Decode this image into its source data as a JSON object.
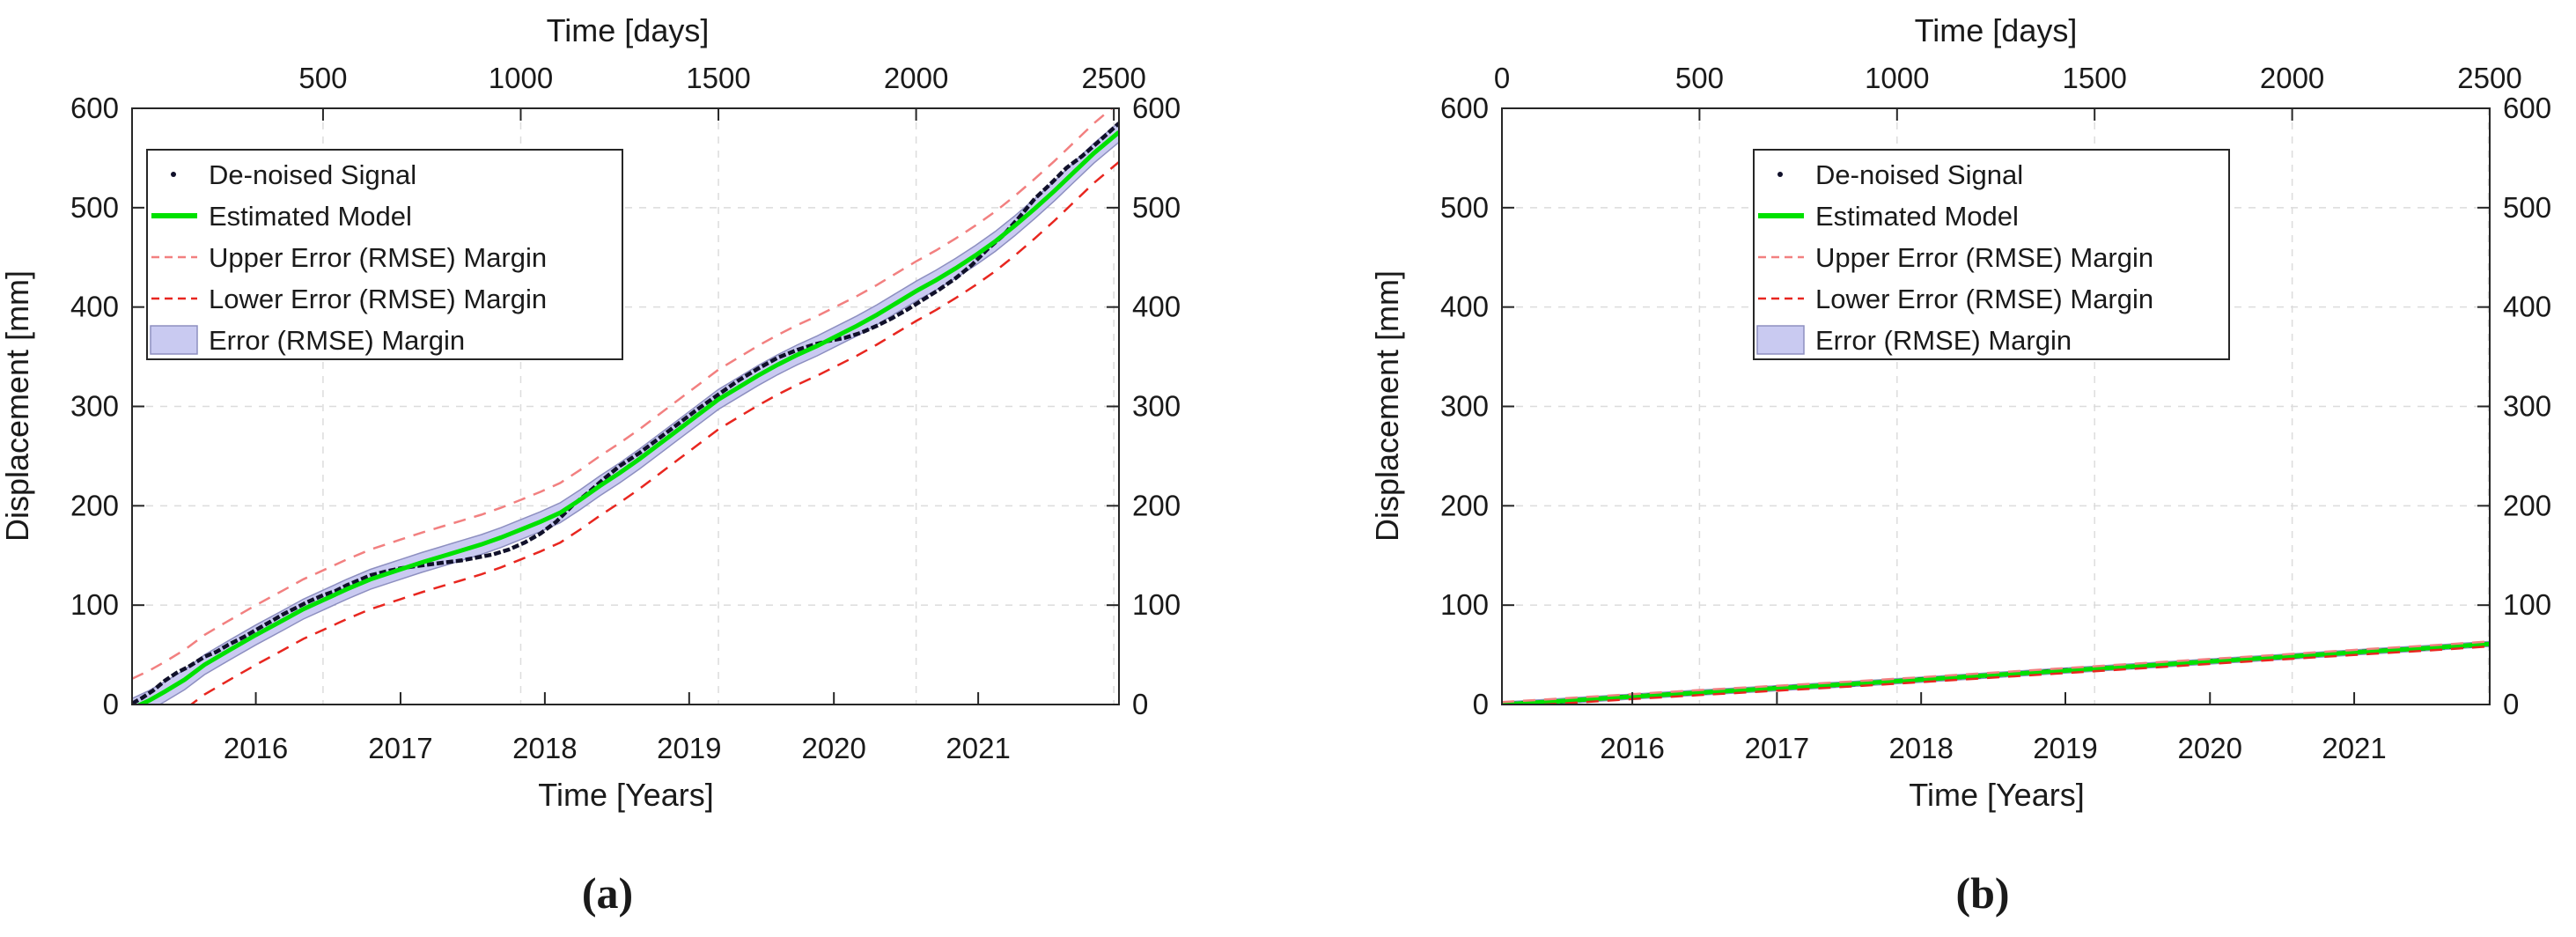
{
  "colors": {
    "signal": "#10102a",
    "model": "#00e100",
    "upper_margin": "#f28080",
    "lower_margin": "#e8261f",
    "band_fill": "#c9caf1",
    "band_edge": "#8d8fc0",
    "grid": "#dcdcdc",
    "axis": "#262626",
    "text": "#1a1a1a"
  },
  "legend": {
    "entries": [
      {
        "label": "De-noised Signal",
        "marker": "dot"
      },
      {
        "label": "Estimated Model",
        "marker": "line"
      },
      {
        "label": "Upper Error (RMSE) Margin",
        "marker": "dash-light"
      },
      {
        "label": "Lower Error (RMSE) Margin",
        "marker": "dash"
      },
      {
        "label": "Error (RMSE) Margin",
        "marker": "patch"
      }
    ]
  },
  "plots": [
    {
      "top_title": "Time [days]",
      "xlabel": "Time [Years]",
      "ylabel": "Displacement [mm]",
      "caption": "(a)"
    },
    {
      "top_title": "Time [days]",
      "xlabel": "Time [Years]",
      "ylabel": "Displacement [mm]",
      "caption": "(b)"
    }
  ],
  "chart_data": [
    {
      "type": "line",
      "title": "Time [days]",
      "xlabel": "Time [Years]",
      "ylabel": "Displacement [mm]",
      "ylim": [
        0,
        600
      ],
      "xlim_days": [
        17,
        2513
      ],
      "y_ticks": [
        0,
        100,
        200,
        300,
        400,
        500,
        600
      ],
      "x_ticks_days": [
        500,
        1000,
        1500,
        2000,
        2500
      ],
      "year_ticks": {
        "labels": [
          "2016",
          "2017",
          "2018",
          "2019",
          "2020",
          "2021"
        ],
        "days": [
          330,
          696,
          1061,
          1426,
          1792,
          2157
        ]
      },
      "grid": true,
      "legend_position": "northwest",
      "margin_line_offset_mm": 30,
      "margin_band_offset_mm": 10,
      "series": [
        {
          "name": "De-noised Signal",
          "points": [
            [
              17,
              1
            ],
            [
              40,
              6
            ],
            [
              70,
              14
            ],
            [
              100,
              24
            ],
            [
              130,
              32
            ],
            [
              160,
              38
            ],
            [
              200,
              48
            ],
            [
              230,
              53
            ],
            [
              260,
              60
            ],
            [
              300,
              68
            ],
            [
              330,
              75
            ],
            [
              370,
              84
            ],
            [
              400,
              91
            ],
            [
              430,
              97
            ],
            [
              460,
              103
            ],
            [
              500,
              110
            ],
            [
              530,
              114
            ],
            [
              560,
              120
            ],
            [
              590,
              125
            ],
            [
              620,
              130
            ],
            [
              660,
              134
            ],
            [
              696,
              137
            ],
            [
              730,
              139
            ],
            [
              770,
              141
            ],
            [
              810,
              143
            ],
            [
              850,
              145
            ],
            [
              890,
              148
            ],
            [
              930,
              151
            ],
            [
              970,
              156
            ],
            [
              1010,
              163
            ],
            [
              1050,
              172
            ],
            [
              1090,
              184
            ],
            [
              1130,
              200
            ],
            [
              1170,
              213
            ],
            [
              1210,
              227
            ],
            [
              1250,
              240
            ],
            [
              1300,
              253
            ],
            [
              1350,
              268
            ],
            [
              1400,
              283
            ],
            [
              1450,
              298
            ],
            [
              1500,
              312
            ],
            [
              1550,
              326
            ],
            [
              1600,
              338
            ],
            [
              1650,
              349
            ],
            [
              1700,
              357
            ],
            [
              1740,
              362
            ],
            [
              1780,
              366
            ],
            [
              1820,
              369
            ],
            [
              1860,
              374
            ],
            [
              1900,
              381
            ],
            [
              1940,
              389
            ],
            [
              1980,
              398
            ],
            [
              2020,
              408
            ],
            [
              2060,
              418
            ],
            [
              2100,
              429
            ],
            [
              2140,
              442
            ],
            [
              2180,
              458
            ],
            [
              2220,
              472
            ],
            [
              2260,
              490
            ],
            [
              2300,
              509
            ],
            [
              2340,
              524
            ],
            [
              2380,
              540
            ],
            [
              2420,
              552
            ],
            [
              2460,
              566
            ],
            [
              2513,
              585
            ]
          ]
        },
        {
          "name": "Estimated Model",
          "points": [
            [
              17,
              -4
            ],
            [
              60,
              4
            ],
            [
              100,
              13
            ],
            [
              150,
              25
            ],
            [
              200,
              40
            ],
            [
              260,
              54
            ],
            [
              330,
              70
            ],
            [
              400,
              85
            ],
            [
              450,
              96
            ],
            [
              500,
              105
            ],
            [
              560,
              116
            ],
            [
              620,
              126
            ],
            [
              696,
              136
            ],
            [
              750,
              143
            ],
            [
              800,
              149
            ],
            [
              850,
              155
            ],
            [
              900,
              161
            ],
            [
              950,
              168
            ],
            [
              1000,
              176
            ],
            [
              1050,
              184
            ],
            [
              1100,
              193
            ],
            [
              1150,
              206
            ],
            [
              1200,
              220
            ],
            [
              1250,
              233
            ],
            [
              1300,
              247
            ],
            [
              1350,
              262
            ],
            [
              1400,
              277
            ],
            [
              1450,
              292
            ],
            [
              1500,
              307
            ],
            [
              1550,
              319
            ],
            [
              1600,
              331
            ],
            [
              1650,
              342
            ],
            [
              1700,
              352
            ],
            [
              1750,
              361
            ],
            [
              1800,
              371
            ],
            [
              1850,
              381
            ],
            [
              1900,
              392
            ],
            [
              1950,
              404
            ],
            [
              2000,
              416
            ],
            [
              2050,
              427
            ],
            [
              2100,
              439
            ],
            [
              2150,
              452
            ],
            [
              2200,
              466
            ],
            [
              2250,
              482
            ],
            [
              2300,
              499
            ],
            [
              2350,
              517
            ],
            [
              2400,
              536
            ],
            [
              2450,
              555
            ],
            [
              2513,
              576
            ]
          ]
        }
      ]
    },
    {
      "type": "line",
      "title": "Time [days]",
      "xlabel": "Time [Years]",
      "ylabel": "Displacement [mm]",
      "ylim": [
        0,
        600
      ],
      "xlim_days": [
        0,
        2500
      ],
      "y_ticks": [
        0,
        100,
        200,
        300,
        400,
        500,
        600
      ],
      "x_ticks_days": [
        0,
        500,
        1000,
        1500,
        2000,
        2500
      ],
      "year_ticks": {
        "labels": [
          "2016",
          "2017",
          "2018",
          "2019",
          "2020",
          "2021"
        ],
        "days": [
          330,
          696,
          1061,
          1426,
          1792,
          2157
        ]
      },
      "grid": true,
      "legend_position": "north",
      "margin_line_offset_mm": 2.5,
      "margin_band_offset_mm": 2.5,
      "series": [
        {
          "name": "De-noised Signal",
          "points": [
            [
              0,
              0.5
            ],
            [
              150,
              3
            ],
            [
              330,
              8.5
            ],
            [
              500,
              11.5
            ],
            [
              700,
              17
            ],
            [
              900,
              20.5
            ],
            [
              1061,
              25.5
            ],
            [
              1200,
              28
            ],
            [
              1400,
              34
            ],
            [
              1600,
              38
            ],
            [
              1800,
              44
            ],
            [
              2000,
              48
            ],
            [
              2200,
              54
            ],
            [
              2350,
              56.5
            ],
            [
              2500,
              60.5
            ]
          ]
        },
        {
          "name": "Estimated Model",
          "points": [
            [
              0,
              0
            ],
            [
              150,
              3.5
            ],
            [
              330,
              8
            ],
            [
              500,
              12
            ],
            [
              700,
              16.5
            ],
            [
              900,
              21
            ],
            [
              1061,
              25
            ],
            [
              1200,
              28.5
            ],
            [
              1400,
              33.5
            ],
            [
              1600,
              38.5
            ],
            [
              1800,
              43.5
            ],
            [
              2000,
              48.5
            ],
            [
              2200,
              53.5
            ],
            [
              2350,
              57
            ],
            [
              2500,
              61
            ]
          ]
        }
      ]
    }
  ]
}
